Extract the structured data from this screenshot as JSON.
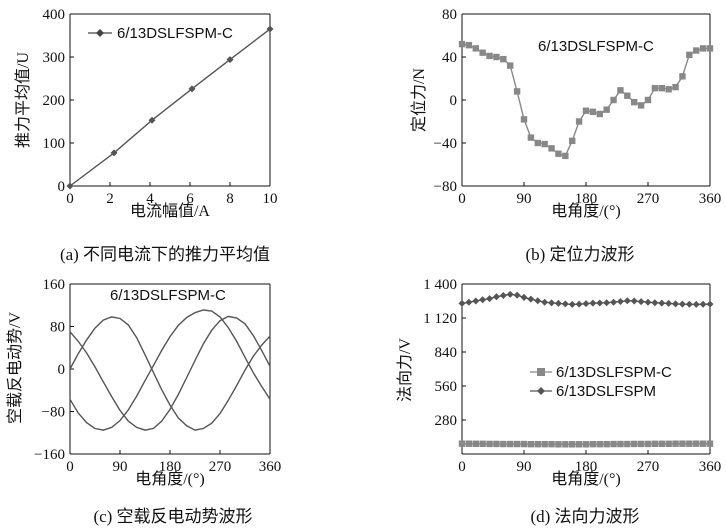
{
  "colors": {
    "axis": "#111111",
    "series_dark": "#555555",
    "series_gray": "#888888",
    "background": "#ffffff"
  },
  "chart_data": [
    {
      "type": "line",
      "panel": "a",
      "caption": "(a) 不同电流下的推力平均值",
      "xlabel": "电流幅值/A",
      "ylabel": "推力平均值/U",
      "xlim": [
        0,
        10
      ],
      "ylim": [
        0,
        400
      ],
      "xticks": [
        "0",
        "2",
        "4",
        "6",
        "8",
        "10"
      ],
      "yticks": [
        "0",
        "100",
        "200",
        "300",
        "400"
      ],
      "grid": false,
      "legend_position": "top-left",
      "series": [
        {
          "name": "6/13DSLFSPM-C",
          "marker": "diamond",
          "x": [
            0,
            2.2,
            4.1,
            6.1,
            8.0,
            10.0
          ],
          "y": [
            0,
            77,
            153,
            226,
            294,
            365
          ]
        }
      ]
    },
    {
      "type": "line",
      "panel": "b",
      "caption": "(b) 定位力波形",
      "xlabel": "电角度/(°)",
      "ylabel": "定位力/N",
      "xlim": [
        0,
        360
      ],
      "ylim": [
        -80,
        80
      ],
      "xticks": [
        "0",
        "90",
        "180",
        "270",
        "360"
      ],
      "yticks": [
        "−80",
        "−40",
        "0",
        "40",
        "80"
      ],
      "grid": false,
      "annotation": "6/13DSLFSPM-C",
      "series": [
        {
          "marker": "square",
          "x": [
            0,
            10,
            20,
            30,
            40,
            50,
            60,
            70,
            80,
            90,
            100,
            110,
            120,
            130,
            140,
            150,
            160,
            170,
            180,
            190,
            200,
            210,
            220,
            230,
            240,
            250,
            260,
            270,
            280,
            290,
            300,
            310,
            320,
            330,
            340,
            350,
            360
          ],
          "y": [
            52,
            51,
            48,
            44,
            41,
            40,
            38,
            32,
            8,
            -18,
            -35,
            -40,
            -41,
            -45,
            -50,
            -52,
            -38,
            -20,
            -10,
            -11,
            -13,
            -9,
            0,
            9,
            4,
            -2,
            -5,
            0,
            11,
            11,
            10,
            12,
            22,
            42,
            46,
            48,
            48
          ]
        }
      ]
    },
    {
      "type": "line",
      "panel": "c",
      "caption": "(c) 空载反电动势波形",
      "xlabel": "电角度/(°)",
      "ylabel": "空载反电动势/V",
      "xlim": [
        0,
        360
      ],
      "ylim": [
        -160,
        160
      ],
      "xticks": [
        "0",
        "90",
        "180",
        "270",
        "360"
      ],
      "yticks": [
        "−160",
        "−80",
        "0",
        "80",
        "160"
      ],
      "grid": false,
      "annotation": "6/13DSLFSPM-C",
      "series": [
        {
          "phase_deg": 210,
          "x": [
            0,
            15,
            30,
            45,
            60,
            75,
            90,
            105,
            120,
            135,
            150,
            165,
            180,
            195,
            210,
            225,
            240,
            255,
            270,
            285,
            300,
            315,
            330,
            345,
            360
          ],
          "y": [
            -57,
            -83,
            -101,
            -112,
            -115,
            -110,
            -97,
            -77,
            -51,
            -22,
            6,
            35,
            61,
            82,
            97,
            106,
            111,
            109,
            98,
            78,
            52,
            22,
            -7,
            -33,
            -57
          ]
        },
        {
          "phase_deg": 90,
          "x": [
            0,
            15,
            30,
            45,
            60,
            75,
            90,
            105,
            120,
            135,
            150,
            165,
            180,
            195,
            210,
            225,
            240,
            255,
            270,
            285,
            300,
            315,
            330,
            345,
            360
          ],
          "y": [
            0,
            29,
            55,
            77,
            92,
            98,
            95,
            83,
            59,
            27,
            -6,
            -39,
            -68,
            -92,
            -107,
            -115,
            -112,
            -102,
            -84,
            -59,
            -31,
            -2,
            24,
            45,
            62
          ]
        },
        {
          "phase_deg": 330,
          "x": [
            0,
            15,
            30,
            45,
            60,
            75,
            90,
            105,
            120,
            135,
            150,
            165,
            180,
            195,
            210,
            225,
            240,
            255,
            270,
            285,
            300,
            315,
            330,
            345,
            360
          ],
          "y": [
            70,
            52,
            30,
            4,
            -24,
            -52,
            -78,
            -98,
            -110,
            -115,
            -112,
            -98,
            -76,
            -48,
            -16,
            16,
            47,
            73,
            91,
            99,
            96,
            85,
            63,
            35,
            5
          ]
        }
      ]
    },
    {
      "type": "line",
      "panel": "d",
      "caption": "(d) 法向力波形",
      "xlabel": "电角度/(°)",
      "ylabel": "法向力/V",
      "xlim": [
        0,
        360
      ],
      "ylim": [
        0,
        1400
      ],
      "xticks": [
        "0",
        "90",
        "180",
        "270",
        "360"
      ],
      "yticks": [
        "280",
        "560",
        "840",
        "1 120",
        "1 400"
      ],
      "grid": false,
      "legend_position": "center-right",
      "series": [
        {
          "name": "6/13DSLFSPM-C",
          "marker": "square",
          "x_step": 10,
          "y": [
            85,
            85,
            84,
            84,
            83,
            83,
            82,
            82,
            82,
            82,
            81,
            81,
            81,
            81,
            80,
            80,
            80,
            80,
            80,
            81,
            81,
            81,
            82,
            82,
            82,
            83,
            83,
            83,
            84,
            84,
            84,
            85,
            85,
            85,
            85,
            85,
            85
          ]
        },
        {
          "name": "6/13DSLFSPM",
          "marker": "diamond",
          "x_step": 10,
          "y": [
            1240,
            1250,
            1260,
            1270,
            1280,
            1295,
            1305,
            1315,
            1308,
            1290,
            1275,
            1262,
            1250,
            1245,
            1240,
            1236,
            1232,
            1234,
            1238,
            1242,
            1244,
            1246,
            1250,
            1256,
            1262,
            1260,
            1255,
            1250,
            1246,
            1243,
            1240,
            1236,
            1234,
            1233,
            1232,
            1233,
            1234
          ]
        }
      ]
    }
  ]
}
